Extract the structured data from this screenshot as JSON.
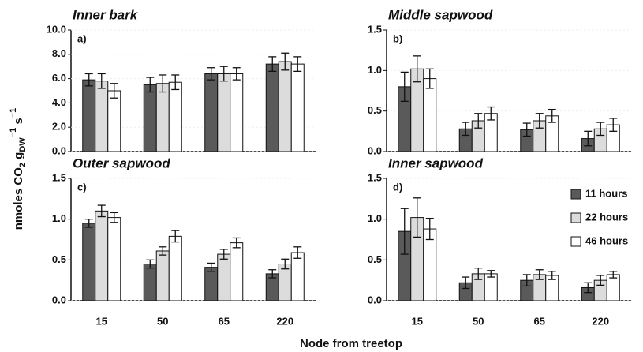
{
  "figure": {
    "y_label_parts": [
      "nmoles CO",
      "2",
      " g",
      "DW",
      "−1",
      " s",
      "−1"
    ],
    "x_label": "Node from treetop"
  },
  "chart_data": [
    {
      "type": "bar",
      "title": "Inner bark",
      "label": "a)",
      "categories": [
        null,
        null,
        null,
        null
      ],
      "series": [
        {
          "color": "#5a5a5a",
          "values": [
            5.9,
            5.5,
            6.4,
            7.2
          ],
          "errors": [
            0.5,
            0.6,
            0.5,
            0.6
          ]
        },
        {
          "color": "#dcdcdc",
          "values": [
            5.8,
            5.6,
            6.4,
            7.4
          ],
          "errors": [
            0.6,
            0.7,
            0.6,
            0.7
          ]
        },
        {
          "color": "#ffffff",
          "values": [
            5.0,
            5.7,
            6.4,
            7.2
          ],
          "errors": [
            0.6,
            0.6,
            0.5,
            0.6
          ]
        }
      ],
      "ylim": [
        0,
        10
      ],
      "yticks": [
        {
          "value": 0,
          "label": "0.0"
        },
        {
          "value": 2,
          "label": "2.0"
        },
        {
          "value": 4,
          "label": "4.0"
        },
        {
          "value": 6,
          "label": "6.0"
        },
        {
          "value": 8,
          "label": "8.0"
        },
        {
          "value": 10,
          "label": "10.0"
        }
      ]
    },
    {
      "type": "bar",
      "title": "Middle sapwood",
      "label": "b)",
      "categories": [
        null,
        null,
        null,
        null
      ],
      "series": [
        {
          "color": "#5a5a5a",
          "values": [
            0.8,
            0.28,
            0.27,
            0.16
          ],
          "errors": [
            0.18,
            0.08,
            0.08,
            0.09
          ]
        },
        {
          "color": "#dcdcdc",
          "values": [
            1.02,
            0.38,
            0.38,
            0.28
          ],
          "errors": [
            0.16,
            0.09,
            0.09,
            0.08
          ]
        },
        {
          "color": "#ffffff",
          "values": [
            0.9,
            0.47,
            0.44,
            0.33
          ],
          "errors": [
            0.12,
            0.08,
            0.08,
            0.08
          ]
        }
      ],
      "ylim": [
        0,
        1.5
      ],
      "yticks": [
        {
          "value": 0,
          "label": "0.0"
        },
        {
          "value": 0.5,
          "label": "0.5"
        },
        {
          "value": 1,
          "label": "1.0"
        },
        {
          "value": 1.5,
          "label": "1.5"
        }
      ]
    },
    {
      "type": "bar",
      "title": "Outer sapwood",
      "label": "c)",
      "categories": [
        "15",
        "50",
        "65",
        "220"
      ],
      "series": [
        {
          "color": "#5a5a5a",
          "values": [
            0.95,
            0.45,
            0.41,
            0.33
          ],
          "errors": [
            0.05,
            0.05,
            0.05,
            0.05
          ]
        },
        {
          "color": "#dcdcdc",
          "values": [
            1.1,
            0.61,
            0.57,
            0.45
          ],
          "errors": [
            0.07,
            0.05,
            0.06,
            0.06
          ]
        },
        {
          "color": "#ffffff",
          "values": [
            1.02,
            0.79,
            0.71,
            0.59
          ],
          "errors": [
            0.06,
            0.07,
            0.06,
            0.07
          ]
        }
      ],
      "ylim": [
        0,
        1.5
      ],
      "yticks": [
        {
          "value": 0,
          "label": "0.0"
        },
        {
          "value": 0.5,
          "label": "0.5"
        },
        {
          "value": 1,
          "label": "1.0"
        },
        {
          "value": 1.5,
          "label": "1.5"
        }
      ]
    },
    {
      "type": "bar",
      "title": "Inner sapwood",
      "label": "d)",
      "categories": [
        "15",
        "50",
        "65",
        "220"
      ],
      "series": [
        {
          "name": "11 hours",
          "color": "#5a5a5a",
          "values": [
            0.85,
            0.22,
            0.25,
            0.16
          ],
          "errors": [
            0.28,
            0.07,
            0.07,
            0.06
          ]
        },
        {
          "name": "22 hours",
          "color": "#dcdcdc",
          "values": [
            1.02,
            0.33,
            0.32,
            0.25
          ],
          "errors": [
            0.24,
            0.07,
            0.06,
            0.06
          ]
        },
        {
          "name": "46 hours",
          "color": "#ffffff",
          "values": [
            0.88,
            0.33,
            0.31,
            0.32
          ],
          "errors": [
            0.13,
            0.04,
            0.05,
            0.04
          ]
        }
      ],
      "ylim": [
        0,
        1.5
      ],
      "yticks": [
        {
          "value": 0,
          "label": "0.0"
        },
        {
          "value": 0.5,
          "label": "0.5"
        },
        {
          "value": 1,
          "label": "1.0"
        },
        {
          "value": 1.5,
          "label": "1.5"
        }
      ]
    }
  ]
}
